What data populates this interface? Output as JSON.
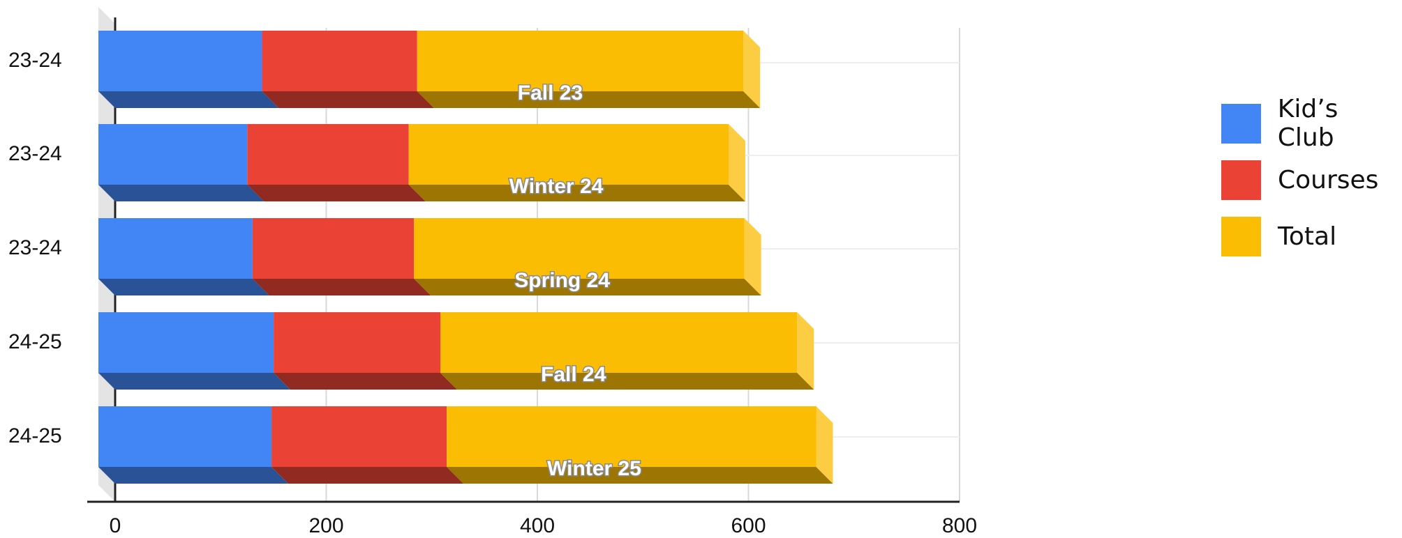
{
  "chart_data": {
    "type": "bar",
    "orientation": "horizontal",
    "stacked": true,
    "style": "3d",
    "categories": [
      "23-24",
      "23-24",
      "23-24",
      "24-25",
      "24-25"
    ],
    "bar_labels": [
      "Fall 23",
      "Winter 24",
      "Spring 24",
      "Fall 24",
      "Winter 25"
    ],
    "series": [
      {
        "name": "Kid’s Club",
        "color": "#4285f4",
        "values": [
          155,
          141,
          146,
          166,
          164
        ]
      },
      {
        "name": "Courses",
        "color": "#ea4335",
        "values": [
          147,
          153,
          153,
          158,
          166
        ]
      },
      {
        "name": "Total",
        "color": "#fbbc04",
        "values": [
          309,
          303,
          313,
          338,
          350
        ]
      }
    ],
    "xlim": [
      0,
      800
    ],
    "xticks": [
      "0",
      "200",
      "400",
      "600",
      "800"
    ],
    "grid": true,
    "legend_position": "right",
    "title": "",
    "xlabel": "",
    "ylabel": ""
  }
}
